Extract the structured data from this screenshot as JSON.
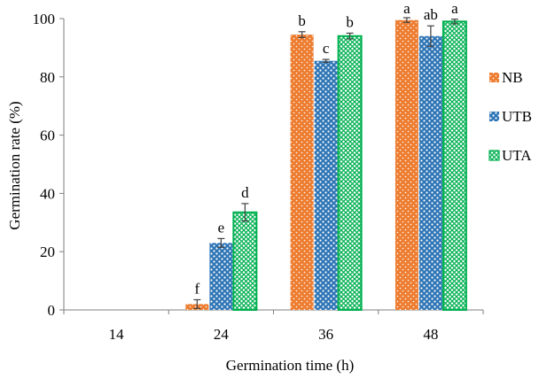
{
  "chart_data": {
    "type": "bar",
    "title": "",
    "xlabel": "Germination time (h)",
    "ylabel": "Germination rate (%)",
    "categories": [
      "14",
      "24",
      "36",
      "48"
    ],
    "ylim": [
      0,
      100
    ],
    "yticks": [
      0,
      20,
      40,
      60,
      80,
      100
    ],
    "grid": false,
    "legend_position": "right",
    "series": [
      {
        "name": "NB",
        "color": "#ED7D31",
        "pattern": "dots",
        "values": [
          0,
          2,
          94.5,
          99.5
        ],
        "errors": [
          0,
          1.5,
          1,
          0.8
        ],
        "letters": [
          "",
          "f",
          "b",
          "a"
        ]
      },
      {
        "name": "UTB",
        "color": "#2E75B6",
        "pattern": "dots",
        "values": [
          0,
          23,
          85.5,
          94
        ],
        "errors": [
          0,
          1.5,
          0.5,
          3.5
        ],
        "letters": [
          "",
          "e",
          "c",
          "ab"
        ]
      },
      {
        "name": "UTA",
        "color": "#00B050",
        "pattern": "crosshatch",
        "values": [
          0,
          33.5,
          94,
          99
        ],
        "errors": [
          0,
          3,
          1,
          0.8
        ],
        "letters": [
          "",
          "d",
          "b",
          "a"
        ]
      }
    ]
  }
}
